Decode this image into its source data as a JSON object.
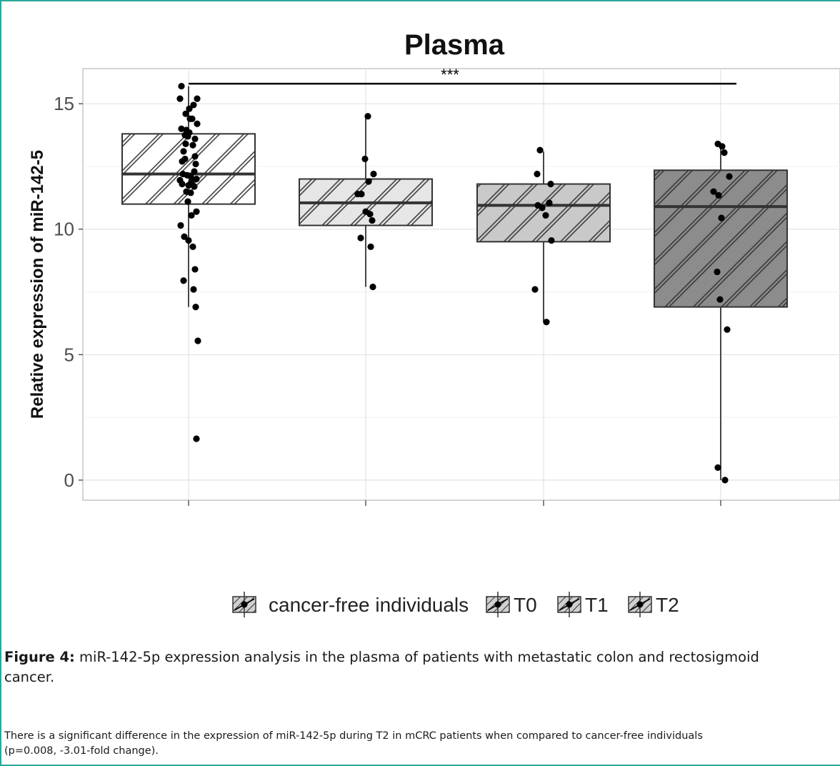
{
  "chart_data": {
    "type": "box",
    "title": "Plasma",
    "ylabel": "Relative expression of  miR-142-5",
    "xlabel": "",
    "ylim": [
      -0.8,
      16.4
    ],
    "yticks": [
      0,
      5,
      10,
      15
    ],
    "grid": true,
    "legend_position": "bottom",
    "significance": {
      "label": "***",
      "from": "cancer-free individuals",
      "to": "T2",
      "y": 15.8
    },
    "categories": [
      "cancer-free individuals",
      "T0",
      "T1",
      "T2"
    ],
    "series": [
      {
        "name": "cancer-free individuals",
        "fill": "#ffffff",
        "box": {
          "q1": 11.0,
          "median": 12.2,
          "q3": 13.8,
          "whisker_low": 6.9,
          "whisker_high": 15.7
        },
        "points": [
          15.7,
          15.2,
          15.2,
          14.95,
          14.8,
          14.6,
          14.4,
          14.4,
          14.2,
          14.0,
          13.95,
          13.85,
          13.75,
          13.7,
          13.6,
          13.4,
          13.35,
          13.1,
          12.9,
          12.8,
          12.7,
          12.6,
          12.3,
          12.2,
          12.15,
          12.1,
          12.0,
          11.95,
          11.9,
          11.8,
          11.75,
          11.7,
          11.5,
          11.45,
          11.1,
          10.7,
          10.55,
          10.15,
          9.7,
          9.55,
          9.3,
          8.4,
          7.95,
          7.6,
          6.9,
          5.55,
          1.65
        ]
      },
      {
        "name": "T0",
        "fill": "#e6e6e6",
        "box": {
          "q1": 10.15,
          "median": 11.05,
          "q3": 12.0,
          "whisker_low": 7.7,
          "whisker_high": 14.5
        },
        "points": [
          14.5,
          12.8,
          12.2,
          11.9,
          11.4,
          11.4,
          10.7,
          10.6,
          10.35,
          9.65,
          9.3,
          7.7
        ]
      },
      {
        "name": "T1",
        "fill": "#c9c9c9",
        "box": {
          "q1": 9.5,
          "median": 10.95,
          "q3": 11.8,
          "whisker_low": 6.3,
          "whisker_high": 13.1
        },
        "points": [
          13.15,
          12.2,
          11.8,
          11.05,
          10.95,
          10.85,
          10.55,
          9.55,
          7.6,
          6.3
        ]
      },
      {
        "name": "T2",
        "fill": "#8c8c8c",
        "box": {
          "q1": 6.9,
          "median": 10.9,
          "q3": 12.35,
          "whisker_low": 0.0,
          "whisker_high": 13.4
        },
        "points": [
          13.4,
          13.3,
          13.05,
          12.1,
          11.5,
          11.35,
          10.45,
          8.3,
          7.2,
          6.0,
          0.5,
          0.0
        ]
      }
    ]
  },
  "caption": {
    "label": "Figure 4:",
    "text": " miR-142-5p expression analysis in the plasma of patients with metastatic colon and rectosigmoid",
    "text_line2": "cancer."
  },
  "note": {
    "line1": "There is a significant difference in the expression of miR-142-5p during T2 in mCRC patients when compared to cancer-free individuals",
    "line2": "(p=0.008, -3.01-fold change)."
  }
}
